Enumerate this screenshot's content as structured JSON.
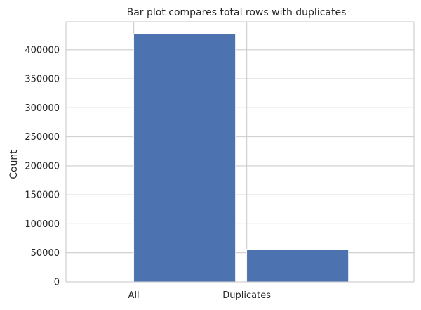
{
  "chart_data": {
    "type": "bar",
    "title": "Bar plot compares total rows with duplicates",
    "xlabel": "",
    "ylabel": "Count",
    "categories": [
      "All",
      "Duplicates"
    ],
    "values": [
      426880,
      56202
    ],
    "ylim": [
      0,
      448224
    ],
    "yticks": [
      0,
      50000,
      100000,
      150000,
      200000,
      250000,
      300000,
      350000,
      400000
    ],
    "bar_color": "#4c72b0",
    "grid": true,
    "legend": "none"
  }
}
